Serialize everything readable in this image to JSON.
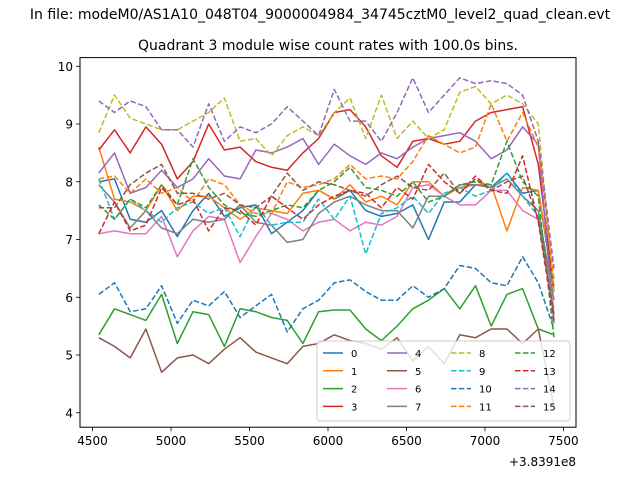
{
  "suptitle": "In file: modeM0/AS1A10_048T04_9000004984_34745cztM0_level2_quad_clean.evt",
  "chart_data": {
    "type": "line",
    "title": "Quadrant 3 module wise count rates with 100.0s bins.",
    "xlabel": "",
    "ylabel": "",
    "x_offset_label": "+3.8391e8",
    "xlim": [
      4420,
      7580
    ],
    "ylim": [
      3.75,
      10.15
    ],
    "xticks": [
      4500,
      5000,
      5500,
      6000,
      6500,
      7000,
      7500
    ],
    "yticks": [
      4,
      5,
      6,
      7,
      8,
      9,
      10
    ],
    "grid": false,
    "legend": {
      "location": "lower-right",
      "columns": 4
    },
    "x": [
      4540,
      4640,
      4740,
      4840,
      4940,
      5040,
      5140,
      5240,
      5340,
      5440,
      5540,
      5640,
      5740,
      5840,
      5940,
      6040,
      6140,
      6240,
      6340,
      6440,
      6540,
      6640,
      6740,
      6840,
      6940,
      7040,
      7140,
      7240,
      7340,
      7440
    ],
    "series": [
      {
        "name": "0",
        "color": "#1f77b4",
        "dash": "solid",
        "values": [
          8.0,
          8.05,
          7.35,
          7.3,
          7.5,
          7.05,
          7.5,
          7.8,
          7.4,
          7.55,
          7.6,
          7.1,
          7.3,
          7.5,
          7.85,
          7.7,
          7.85,
          7.5,
          7.4,
          7.45,
          7.6,
          7.0,
          7.65,
          7.65,
          7.95,
          7.9,
          8.15,
          7.8,
          7.85,
          6.1
        ]
      },
      {
        "name": "1",
        "color": "#ff7f0e",
        "dash": "solid",
        "values": [
          8.6,
          7.7,
          7.65,
          7.5,
          7.95,
          7.5,
          7.75,
          7.75,
          7.55,
          7.35,
          7.55,
          7.5,
          7.45,
          7.8,
          7.85,
          7.7,
          7.95,
          7.65,
          7.75,
          7.6,
          8.0,
          8.0,
          7.75,
          7.9,
          7.95,
          7.95,
          7.15,
          7.9,
          7.85,
          6.2
        ]
      },
      {
        "name": "2",
        "color": "#2ca02c",
        "dash": "solid",
        "values": [
          5.35,
          5.8,
          5.7,
          5.6,
          6.05,
          5.2,
          5.75,
          5.7,
          5.15,
          5.8,
          5.75,
          5.65,
          5.6,
          5.2,
          5.75,
          5.78,
          5.78,
          5.45,
          5.25,
          5.5,
          5.8,
          5.95,
          6.15,
          5.8,
          6.2,
          5.5,
          6.05,
          6.15,
          5.45,
          5.35
        ]
      },
      {
        "name": "3",
        "color": "#d62728",
        "dash": "solid",
        "values": [
          8.55,
          8.9,
          8.5,
          8.95,
          8.65,
          8.05,
          8.35,
          9.0,
          8.55,
          8.6,
          8.35,
          8.25,
          8.2,
          8.5,
          8.75,
          9.2,
          9.25,
          8.95,
          8.45,
          8.25,
          8.7,
          8.75,
          8.65,
          8.7,
          9.05,
          9.2,
          9.25,
          9.3,
          8.3,
          6.1
        ]
      },
      {
        "name": "4",
        "color": "#9467bd",
        "dash": "solid",
        "values": [
          8.15,
          8.5,
          7.8,
          7.9,
          8.2,
          7.9,
          8.05,
          8.4,
          8.1,
          8.05,
          8.55,
          8.5,
          8.6,
          8.75,
          8.3,
          8.65,
          8.45,
          8.3,
          8.5,
          8.4,
          8.6,
          8.75,
          8.8,
          8.85,
          8.7,
          8.4,
          8.55,
          8.95,
          8.65,
          5.55
        ]
      },
      {
        "name": "5",
        "color": "#8c564b",
        "dash": "solid",
        "values": [
          5.3,
          5.15,
          4.95,
          5.45,
          4.7,
          4.95,
          5.0,
          4.85,
          5.1,
          5.3,
          5.05,
          4.95,
          4.85,
          5.15,
          5.2,
          5.35,
          5.25,
          5.2,
          5.1,
          5.3,
          4.9,
          5.15,
          4.85,
          5.35,
          5.3,
          5.45,
          5.45,
          5.2,
          5.45,
          4.1
        ]
      },
      {
        "name": "6",
        "color": "#e377c2",
        "dash": "solid",
        "values": [
          7.1,
          7.15,
          7.1,
          7.1,
          7.4,
          6.7,
          7.15,
          7.4,
          7.35,
          6.6,
          7.05,
          7.45,
          7.35,
          7.15,
          7.3,
          7.35,
          7.15,
          7.3,
          7.25,
          7.4,
          7.9,
          7.95,
          7.75,
          7.6,
          7.6,
          7.85,
          7.85,
          7.5,
          7.35,
          5.8
        ]
      },
      {
        "name": "7",
        "color": "#7f7f7f",
        "dash": "solid",
        "values": [
          7.95,
          7.65,
          7.2,
          7.5,
          7.2,
          7.1,
          7.35,
          7.3,
          7.35,
          7.6,
          7.3,
          7.25,
          6.95,
          7.0,
          7.45,
          7.65,
          7.75,
          7.6,
          7.5,
          7.5,
          7.2,
          7.75,
          7.75,
          7.95,
          7.95,
          7.9,
          8.05,
          7.75,
          7.5,
          5.95
        ]
      },
      {
        "name": "8",
        "color": "#bcbd22",
        "dash": "dashed",
        "values": [
          8.85,
          9.5,
          9.1,
          9.0,
          8.9,
          8.9,
          9.05,
          9.2,
          9.45,
          8.7,
          8.75,
          8.45,
          8.8,
          8.95,
          8.8,
          9.2,
          9.45,
          8.75,
          9.5,
          8.75,
          9.05,
          8.75,
          8.9,
          9.55,
          9.65,
          9.35,
          9.5,
          9.35,
          9.0,
          6.1
        ]
      },
      {
        "name": "9",
        "color": "#17becf",
        "dash": "dashed",
        "values": [
          8.05,
          7.35,
          7.7,
          7.5,
          7.3,
          7.55,
          7.65,
          7.45,
          7.55,
          7.05,
          7.6,
          7.25,
          7.3,
          7.3,
          7.7,
          7.35,
          7.75,
          6.75,
          7.45,
          7.55,
          7.75,
          7.45,
          7.8,
          7.9,
          7.75,
          7.85,
          8.15,
          7.75,
          7.4,
          5.7
        ]
      },
      {
        "name": "10",
        "color": "#1f77b4",
        "dash": "dashed",
        "values": [
          6.05,
          6.25,
          5.75,
          5.8,
          6.2,
          5.55,
          5.95,
          5.85,
          6.1,
          5.65,
          5.85,
          6.05,
          5.4,
          5.8,
          5.95,
          6.25,
          6.3,
          6.1,
          5.95,
          5.95,
          6.2,
          6.0,
          6.15,
          6.55,
          6.5,
          6.25,
          6.2,
          6.7,
          6.25,
          5.45
        ]
      },
      {
        "name": "11",
        "color": "#ff7f0e",
        "dash": "dashed",
        "values": [
          8.05,
          8.1,
          7.8,
          8.05,
          7.8,
          7.9,
          7.65,
          8.05,
          7.95,
          7.6,
          7.45,
          7.45,
          8.0,
          7.9,
          7.95,
          8.05,
          8.3,
          8.05,
          8.1,
          8.05,
          8.35,
          8.8,
          8.65,
          8.5,
          8.6,
          9.35,
          8.7,
          9.2,
          8.6,
          6.3
        ]
      },
      {
        "name": "12",
        "color": "#2ca02c",
        "dash": "dashed",
        "values": [
          7.6,
          7.35,
          7.7,
          7.55,
          7.95,
          7.6,
          8.4,
          7.9,
          7.6,
          7.45,
          7.4,
          7.5,
          7.6,
          7.55,
          7.85,
          8.0,
          8.25,
          7.9,
          7.85,
          7.75,
          8.0,
          7.65,
          7.75,
          7.95,
          8.0,
          7.95,
          8.7,
          8.0,
          7.75,
          5.3
        ]
      },
      {
        "name": "13",
        "color": "#d62728",
        "dash": "dashed",
        "values": [
          7.1,
          7.65,
          7.15,
          7.25,
          7.9,
          7.6,
          7.7,
          7.15,
          7.55,
          7.5,
          7.25,
          7.75,
          7.55,
          7.35,
          7.6,
          7.75,
          7.85,
          7.8,
          7.55,
          7.9,
          7.7,
          8.3,
          8.0,
          7.8,
          8.1,
          7.85,
          7.8,
          8.45,
          7.3,
          5.6
        ]
      },
      {
        "name": "14",
        "color": "#9467bd",
        "dash": "dashed",
        "values": [
          9.4,
          9.2,
          9.4,
          9.3,
          8.9,
          8.9,
          8.6,
          9.35,
          8.7,
          8.95,
          8.85,
          9.0,
          9.3,
          9.05,
          8.8,
          9.6,
          9.05,
          9.05,
          8.7,
          9.2,
          9.8,
          9.2,
          9.5,
          9.8,
          9.7,
          9.75,
          9.7,
          9.5,
          8.7,
          6.5
        ]
      },
      {
        "name": "15",
        "color": "#8c564b",
        "dash": "dashed",
        "values": [
          7.55,
          7.55,
          7.95,
          8.15,
          8.3,
          7.8,
          7.8,
          7.7,
          7.8,
          7.6,
          7.55,
          7.75,
          8.15,
          7.85,
          8.0,
          7.95,
          7.85,
          7.75,
          7.95,
          8.1,
          7.9,
          7.85,
          8.15,
          7.8,
          8.05,
          7.85,
          8.0,
          8.1,
          7.35,
          5.7
        ]
      }
    ]
  }
}
